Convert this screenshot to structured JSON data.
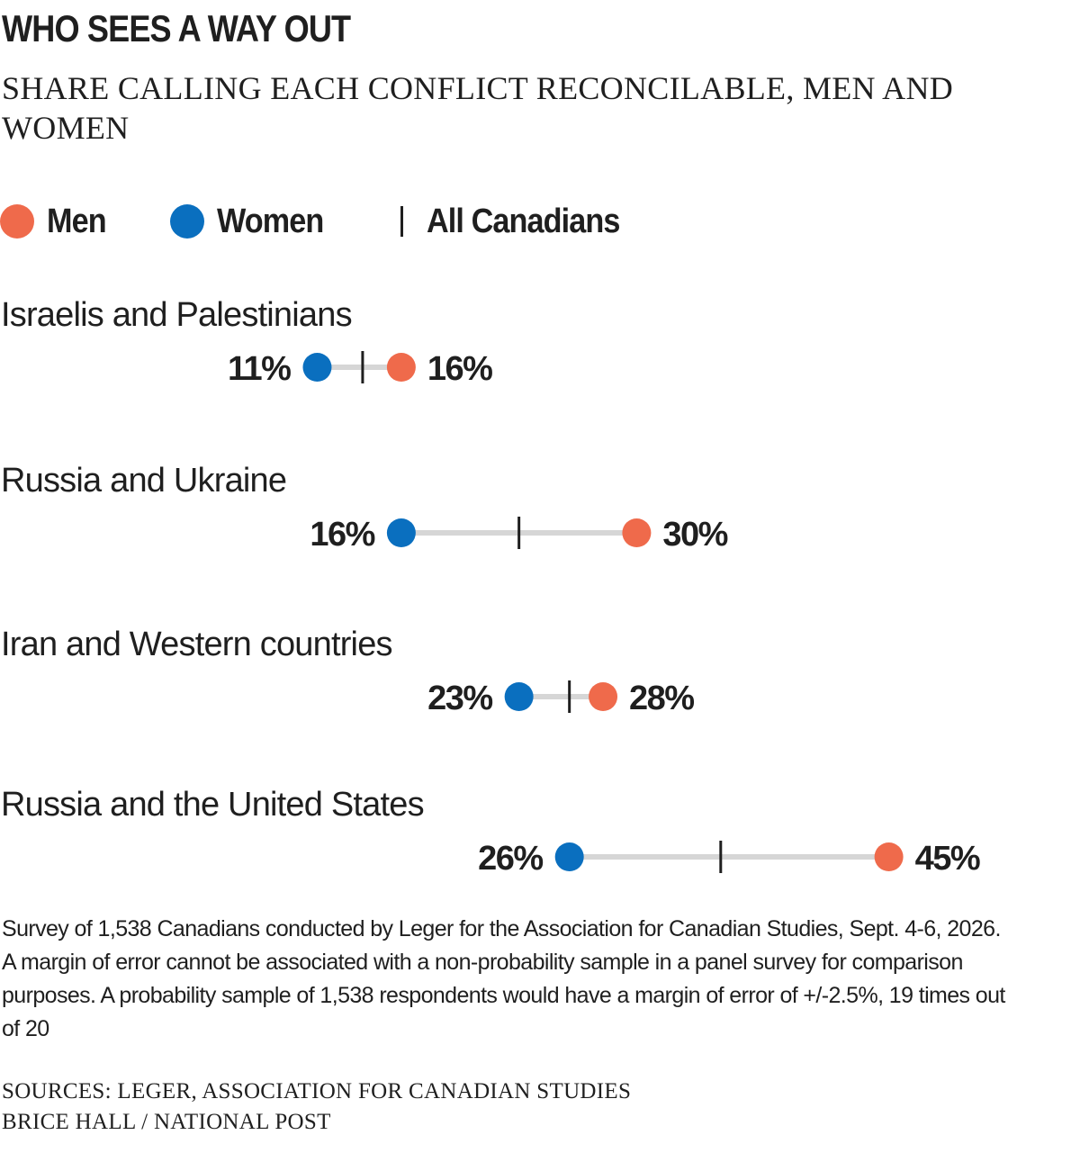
{
  "title": "WHO SEES A WAY OUT",
  "subtitle": "SHARE CALLING EACH CONFLICT RECONCILABLE, MEN AND WOMEN",
  "legend": {
    "men_label": "Men",
    "women_label": "Women",
    "all_label": "All Canadians"
  },
  "colors": {
    "men": "#ef6a4b",
    "women": "#0a6fbf",
    "connector": "#d6d6d6",
    "tick": "#1f1f1f",
    "text": "#1f1f1f"
  },
  "chart_data": {
    "type": "dot-range",
    "unit": "%",
    "series": [
      {
        "name": "Men",
        "color": "#ef6a4b"
      },
      {
        "name": "Women",
        "color": "#0a6fbf"
      },
      {
        "name": "All Canadians",
        "marker": "tick"
      }
    ],
    "rows": [
      {
        "category": "Israelis and Palestinians",
        "women": 11,
        "men": 16,
        "all": 13.7,
        "women_label": "11%",
        "men_label": "16%"
      },
      {
        "category": "Russia and Ukraine",
        "women": 16,
        "men": 30,
        "all": 23,
        "women_label": "16%",
        "men_label": "30%"
      },
      {
        "category": "Iran and Western countries",
        "women": 23,
        "men": 28,
        "all": 26,
        "women_label": "23%",
        "men_label": "28%"
      },
      {
        "category": "Russia and the United States",
        "women": 26,
        "men": 45,
        "all": 35,
        "women_label": "26%",
        "men_label": "45%"
      }
    ]
  },
  "notes": "Survey of 1,538 Canadians conducted by Leger for the Association for Canadian Studies, Sept. 4-6, 2026. A margin of error cannot be associated with a non-probability sample in a panel survey for comparison purposes. A probability sample of 1,538 respondents would have a margin of error of +/-2.5%, 19 times out of 20",
  "sources": "SOURCES: LEGER, ASSOCIATION FOR CANADIAN STUDIES",
  "credit": "BRICE HALL / NATIONAL POST"
}
